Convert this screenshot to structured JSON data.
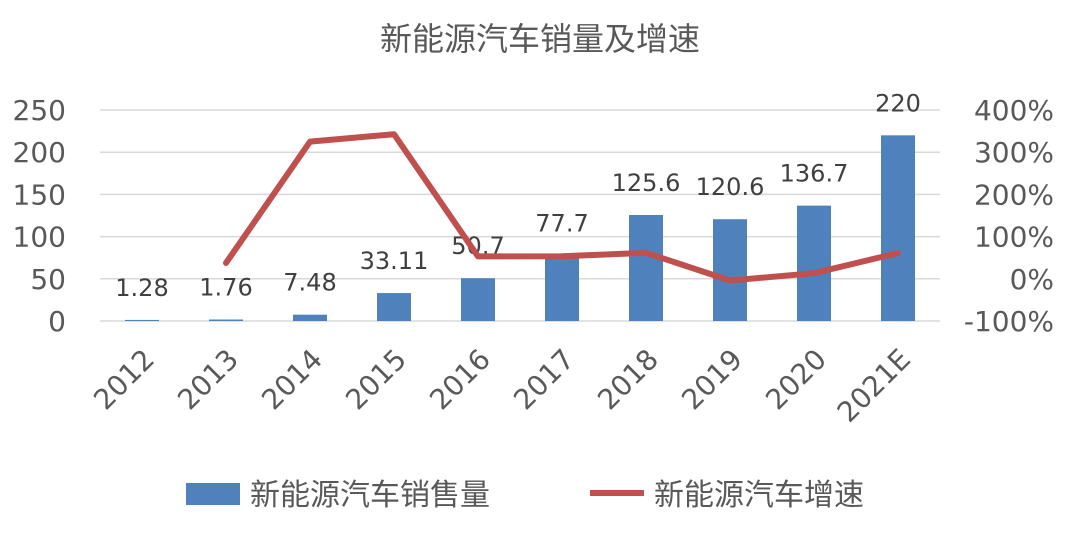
{
  "chart_data": {
    "type": "bar",
    "title": "新能源汽车销量及增速",
    "categories": [
      "2012",
      "2013",
      "2014",
      "2015",
      "2016",
      "2017",
      "2018",
      "2019",
      "2020",
      "2021E"
    ],
    "series": [
      {
        "name": "新能源汽车销售量",
        "type": "bar",
        "axis": "left",
        "color": "#4f81bd",
        "values": [
          1.28,
          1.76,
          7.48,
          33.11,
          50.7,
          77.7,
          125.6,
          120.6,
          136.7,
          220
        ],
        "labels": [
          "1.28",
          "1.76",
          "7.48",
          "33.11",
          "50.7",
          "77.7",
          "125.6",
          "120.6",
          "136.7",
          "220"
        ]
      },
      {
        "name": "新能源汽车增速",
        "type": "line",
        "axis": "right",
        "color": "#c0504d",
        "values": [
          null,
          37.5,
          325,
          342.6,
          53.1,
          53.3,
          61.6,
          -4,
          13.3,
          61
        ]
      }
    ],
    "y_left": {
      "min": 0,
      "max": 250,
      "ticks": [
        "0",
        "50",
        "100",
        "150",
        "200",
        "250"
      ]
    },
    "y_right": {
      "min": -100,
      "max": 400,
      "ticks": [
        "-100%",
        "0%",
        "100%",
        "200%",
        "300%",
        "400%"
      ]
    },
    "grid": true,
    "legend_position": "bottom"
  }
}
